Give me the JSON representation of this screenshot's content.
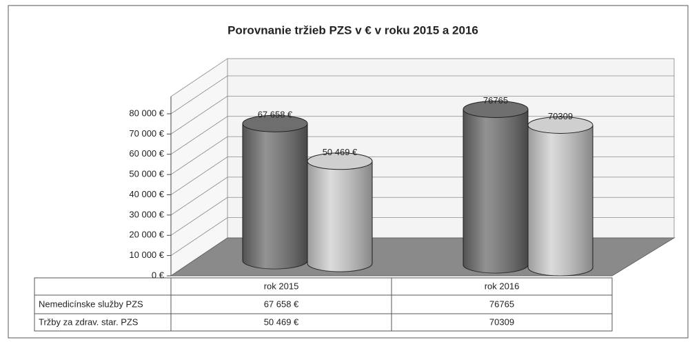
{
  "chart_data": {
    "type": "bar",
    "title": "Porovnanie tržieb PZS v € v roku 2015 a 2016",
    "categories": [
      "rok 2015",
      "rok 2016"
    ],
    "series": [
      {
        "name": "Nemedicínske služby PZS",
        "color": "#6e6e6e",
        "values": [
          67658,
          76765
        ],
        "value_labels": [
          "67 658 €",
          "76765"
        ]
      },
      {
        "name": "Tržby za zdrav. star. PZS",
        "color": "#cfcfcf",
        "values": [
          50469,
          70309
        ],
        "value_labels": [
          "50 469 €",
          "70309"
        ]
      }
    ],
    "ylim": [
      0,
      80000
    ],
    "yticks": [
      {
        "value": 0,
        "label": "0 €"
      },
      {
        "value": 10000,
        "label": "10 000 €"
      },
      {
        "value": 20000,
        "label": "20 000 €"
      },
      {
        "value": 30000,
        "label": "30 000 €"
      },
      {
        "value": 40000,
        "label": "40 000 €"
      },
      {
        "value": 50000,
        "label": "50 000 €"
      },
      {
        "value": 60000,
        "label": "60 000 €"
      },
      {
        "value": 70000,
        "label": "70 000 €"
      },
      {
        "value": 80000,
        "label": "80 000 €"
      }
    ],
    "grid": true
  }
}
